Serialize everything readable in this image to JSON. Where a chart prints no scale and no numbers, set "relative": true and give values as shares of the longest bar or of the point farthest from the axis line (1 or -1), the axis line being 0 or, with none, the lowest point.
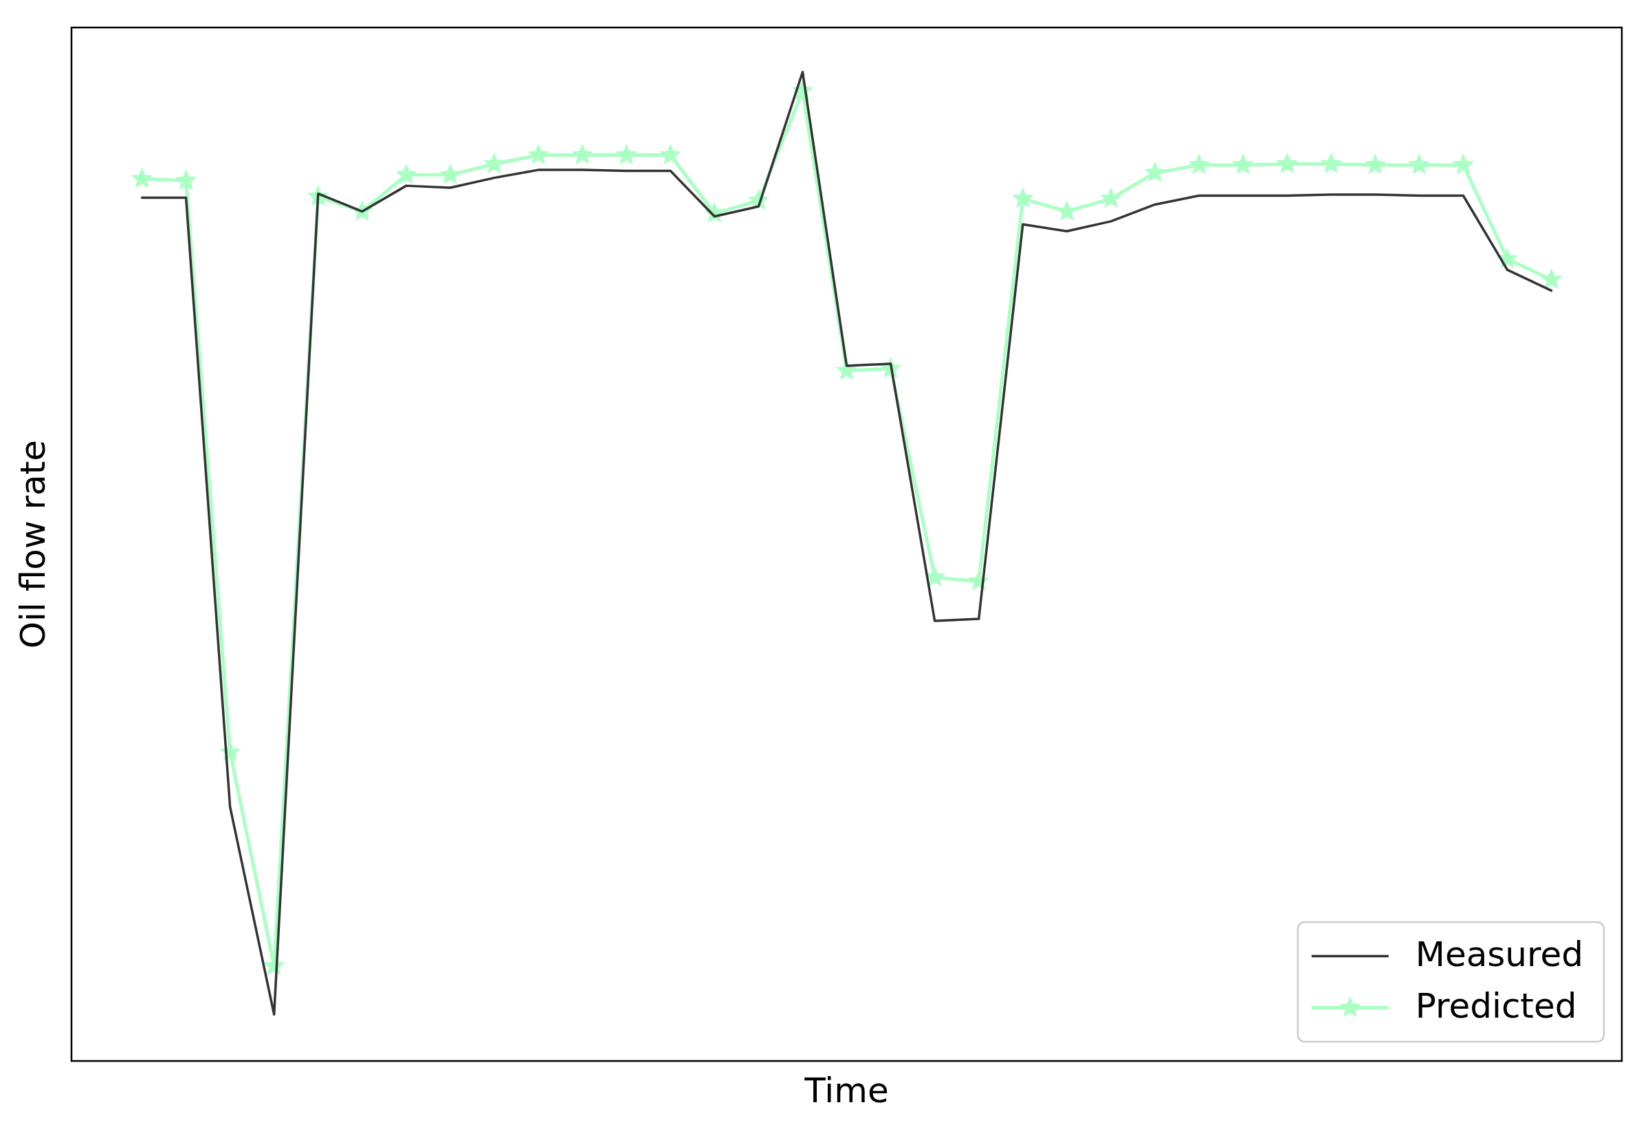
{
  "chart_data": {
    "type": "line",
    "xlabel": "Time",
    "ylabel": "Oil flow rate",
    "relative": true,
    "tick_labels": false,
    "legend": "bottom right",
    "categories": [
      null,
      null,
      null,
      null,
      null,
      null,
      null,
      null,
      null,
      null,
      null,
      null,
      null,
      null,
      null,
      null,
      null,
      null,
      null,
      null,
      null,
      null,
      null,
      null,
      null,
      null,
      null,
      null,
      null,
      null,
      null,
      null,
      null
    ],
    "series": [
      {
        "name": "Measured",
        "color": "#333333",
        "marker": "none",
        "values": [
          0.873,
          0.873,
          0.257,
          0.047,
          0.877,
          0.859,
          0.885,
          0.883,
          0.893,
          0.901,
          0.901,
          0.9,
          0.9,
          0.854,
          0.864,
          1.0,
          0.703,
          0.705,
          0.445,
          0.447,
          0.846,
          0.839,
          0.849,
          0.866,
          0.875,
          0.875,
          0.875,
          0.876,
          0.876,
          0.875,
          0.875,
          0.8,
          0.779
        ]
      },
      {
        "name": "Predicted",
        "color": "#aaffc3",
        "marker": "star",
        "values": [
          0.892,
          0.89,
          0.312,
          0.096,
          0.874,
          0.859,
          0.896,
          0.896,
          0.907,
          0.916,
          0.916,
          0.916,
          0.916,
          0.857,
          0.87,
          0.981,
          0.698,
          0.7,
          0.489,
          0.485,
          0.872,
          0.859,
          0.872,
          0.898,
          0.906,
          0.906,
          0.907,
          0.907,
          0.906,
          0.906,
          0.906,
          0.811,
          0.79
        ]
      }
    ]
  }
}
